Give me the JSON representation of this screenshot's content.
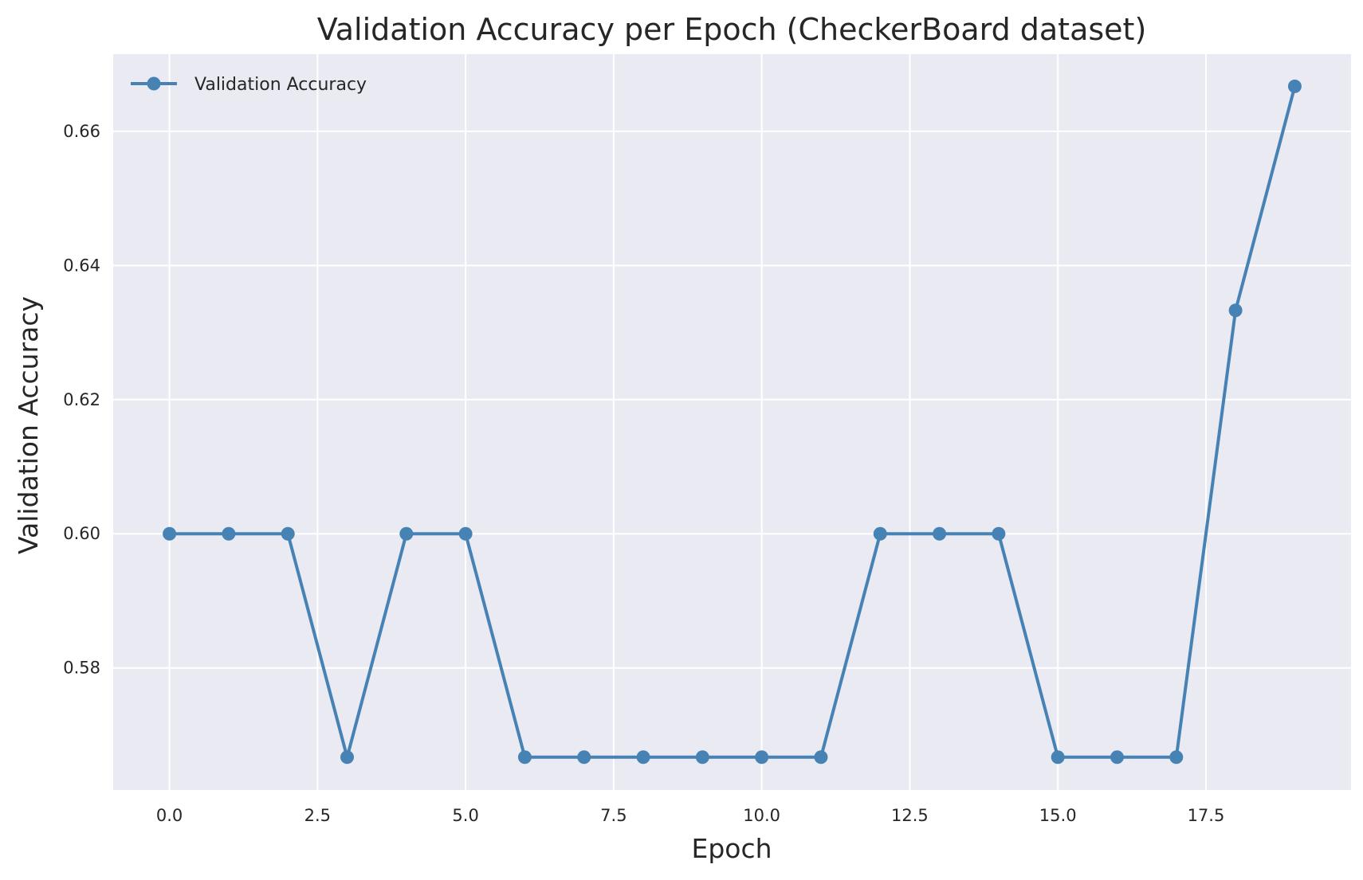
{
  "chart_data": {
    "type": "line",
    "title": "Validation Accuracy per Epoch (CheckerBoard dataset)",
    "xlabel": "Epoch",
    "ylabel": "Validation Accuracy",
    "x": [
      0,
      1,
      2,
      3,
      4,
      5,
      6,
      7,
      8,
      9,
      10,
      11,
      12,
      13,
      14,
      15,
      16,
      17,
      18,
      19
    ],
    "series": [
      {
        "name": "Validation Accuracy",
        "values": [
          0.6,
          0.6,
          0.6,
          0.5667,
          0.6,
          0.6,
          0.5667,
          0.5667,
          0.5667,
          0.5667,
          0.5667,
          0.5667,
          0.6,
          0.6,
          0.6,
          0.5667,
          0.5667,
          0.5667,
          0.6333,
          0.6667
        ],
        "color": "#4682b4",
        "marker": "circle"
      }
    ],
    "xlim": [
      -0.95,
      19.95
    ],
    "ylim": [
      0.5618,
      0.6715
    ],
    "xticks": [
      0.0,
      2.5,
      5.0,
      7.5,
      10.0,
      12.5,
      15.0,
      17.5
    ],
    "xtick_labels": [
      "0.0",
      "2.5",
      "5.0",
      "7.5",
      "10.0",
      "12.5",
      "15.0",
      "17.5"
    ],
    "yticks": [
      0.58,
      0.6,
      0.62,
      0.64,
      0.66
    ],
    "ytick_labels": [
      "0.58",
      "0.60",
      "0.62",
      "0.64",
      "0.66"
    ],
    "grid": true,
    "legend": "upper-left",
    "background": "#eaeaf2",
    "grid_color": "#ffffff"
  }
}
